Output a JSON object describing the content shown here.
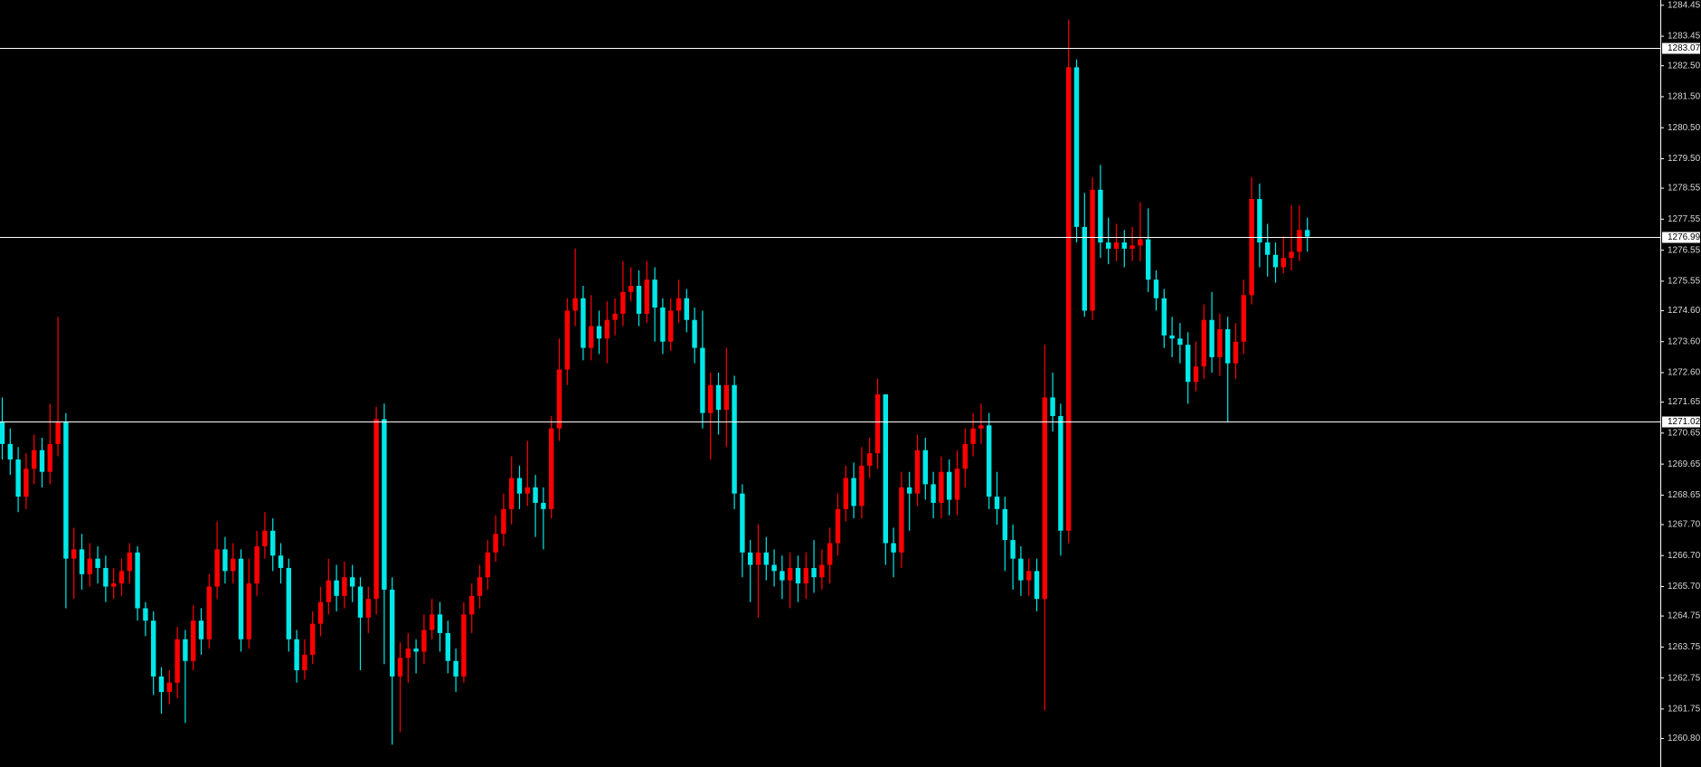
{
  "chart_data": {
    "type": "candlestick",
    "up_color": "#ff0000",
    "down_color": "#00e8e8",
    "level_color": "#ffffff",
    "ylim": [
      1259.88,
      1284.62
    ],
    "yticks": [
      1284.45,
      1283.45,
      {
        "value": 1282.5,
        "label": "1282.50"
      },
      {
        "value": 1281.5,
        "label": "1281.50"
      },
      {
        "value": 1280.5,
        "label": "1280.50"
      },
      {
        "value": 1279.5,
        "label": "1279.50"
      },
      1278.55,
      1277.55,
      1276.55,
      1275.55,
      {
        "value": 1274.6,
        "label": "1274.60"
      },
      {
        "value": 1273.6,
        "label": "1273.60"
      },
      {
        "value": 1272.6,
        "label": "1272.60"
      },
      1271.65,
      1270.65,
      1269.65,
      1268.65,
      {
        "value": 1267.7,
        "label": "1267.70"
      },
      {
        "value": 1266.7,
        "label": "1266.70"
      },
      {
        "value": 1265.7,
        "label": "1265.70"
      },
      1264.75,
      1263.75,
      1262.75,
      1261.75,
      {
        "value": 1260.8,
        "label": "1260.80"
      }
    ],
    "levels": [
      1283.07,
      1276.99,
      1271.02
    ],
    "open": [
      1271.0,
      1270.3,
      1269.8,
      1268.6,
      1269.5,
      1270.1,
      1269.4,
      1270.3,
      1271.0,
      1266.6,
      1266.9,
      1266.1,
      1266.6,
      1266.3,
      1265.7,
      1265.8,
      1266.2,
      1266.8,
      1265.0,
      1264.6,
      1262.8,
      1262.3,
      1262.6,
      1264.0,
      1263.3,
      1264.6,
      1264.0,
      1265.7,
      1266.9,
      1266.2,
      1266.6,
      1264.0,
      1265.8,
      1267.0,
      1267.5,
      1266.7,
      1266.3,
      1264.0,
      1263.0,
      1263.5,
      1264.5,
      1265.2,
      1265.9,
      1265.4,
      1266.0,
      1265.7,
      1264.7,
      1265.3,
      1271.1,
      1265.6,
      1262.8,
      1263.4,
      1263.7,
      1263.6,
      1264.3,
      1264.8,
      1264.2,
      1263.3,
      1262.8,
      1264.8,
      1265.4,
      1266.0,
      1266.8,
      1267.4,
      1268.2,
      1269.2,
      1268.7,
      1268.9,
      1268.4,
      1268.2,
      1270.8,
      1272.7,
      1274.6,
      1275.0,
      1273.4,
      1274.1,
      1273.7,
      1274.3,
      1274.5,
      1275.2,
      1275.4,
      1274.5,
      1275.6,
      1274.7,
      1273.6,
      1274.6,
      1275.0,
      1274.3,
      1273.4,
      1271.3,
      1272.2,
      1271.4,
      1272.2,
      1268.7,
      1266.8,
      1266.4,
      1266.8,
      1266.4,
      1266.2,
      1265.9,
      1266.3,
      1265.8,
      1266.3,
      1266.0,
      1266.4,
      1267.1,
      1268.2,
      1269.2,
      1268.3,
      1269.6,
      1270.0,
      1271.9,
      1267.1,
      1266.8,
      1268.9,
      1268.7,
      1270.1,
      1269.0,
      1268.4,
      1269.4,
      1268.5,
      1269.5,
      1270.3,
      1270.8,
      1270.9,
      1268.6,
      1268.2,
      1267.2,
      1266.6,
      1265.9,
      1266.2,
      1265.3,
      1271.8,
      1271.2,
      1267.5,
      1282.45,
      1277.3,
      1274.6,
      1278.5,
      1276.8,
      1276.6,
      1276.8,
      1276.6,
      1276.7,
      1276.9,
      1275.6,
      1275.0,
      1273.8,
      1273.7,
      1273.5,
      1272.3,
      1272.8,
      1274.3,
      1273.1,
      1274.0,
      1272.9,
      1273.6,
      1275.1,
      1278.2,
      1276.8,
      1276.4,
      1276.0,
      1276.3,
      1276.5,
      1277.2
    ],
    "high": [
      1271.8,
      1270.8,
      1270.2,
      1270.0,
      1270.6,
      1270.5,
      1271.6,
      1274.4,
      1271.3,
      1267.6,
      1267.4,
      1267.1,
      1267.0,
      1266.7,
      1266.3,
      1266.6,
      1267.1,
      1267.0,
      1265.2,
      1264.9,
      1263.1,
      1263.0,
      1264.4,
      1264.3,
      1265.1,
      1265.0,
      1266.1,
      1267.8,
      1267.3,
      1267.1,
      1266.9,
      1266.6,
      1267.5,
      1268.1,
      1267.9,
      1267.1,
      1266.6,
      1264.3,
      1264.0,
      1264.9,
      1265.7,
      1266.6,
      1266.4,
      1266.5,
      1266.4,
      1266.0,
      1265.7,
      1271.5,
      1271.6,
      1266.0,
      1263.9,
      1264.2,
      1264.0,
      1264.8,
      1265.3,
      1265.2,
      1264.6,
      1263.7,
      1265.2,
      1265.8,
      1266.4,
      1267.2,
      1268.0,
      1268.7,
      1269.9,
      1269.6,
      1270.4,
      1269.3,
      1268.9,
      1271.2,
      1273.7,
      1275.0,
      1276.6,
      1275.4,
      1275.1,
      1274.6,
      1274.9,
      1275.0,
      1276.2,
      1276.0,
      1275.9,
      1276.2,
      1276.0,
      1275.0,
      1275.0,
      1275.6,
      1275.3,
      1274.7,
      1274.6,
      1272.6,
      1272.6,
      1273.4,
      1272.5,
      1269.0,
      1267.2,
      1267.7,
      1267.3,
      1266.9,
      1266.7,
      1266.8,
      1266.7,
      1266.8,
      1267.2,
      1266.9,
      1267.6,
      1268.7,
      1269.6,
      1269.7,
      1270.2,
      1270.5,
      1272.4,
      1271.9,
      1267.6,
      1269.4,
      1269.4,
      1270.6,
      1270.5,
      1269.4,
      1269.9,
      1269.8,
      1270.1,
      1270.8,
      1271.3,
      1271.6,
      1271.3,
      1269.4,
      1268.6,
      1267.7,
      1267.0,
      1266.6,
      1266.6,
      1273.5,
      1272.6,
      1271.6,
      1283.99,
      1282.7,
      1278.4,
      1278.9,
      1279.3,
      1277.6,
      1277.4,
      1277.2,
      1277.3,
      1278.1,
      1277.9,
      1275.9,
      1275.3,
      1274.4,
      1274.2,
      1273.9,
      1273.6,
      1274.8,
      1275.2,
      1274.5,
      1274.4,
      1274.2,
      1275.6,
      1278.9,
      1278.7,
      1277.4,
      1276.8,
      1277.0,
      1278.0,
      1278.0,
      1277.6
    ],
    "low": [
      1269.8,
      1269.3,
      1268.1,
      1268.2,
      1269.0,
      1268.9,
      1269.0,
      1269.9,
      1265.0,
      1265.3,
      1265.6,
      1265.7,
      1265.8,
      1265.2,
      1265.3,
      1265.4,
      1265.8,
      1264.6,
      1264.1,
      1262.2,
      1261.6,
      1261.9,
      1262.1,
      1261.3,
      1263.0,
      1263.5,
      1263.7,
      1265.3,
      1265.8,
      1265.8,
      1263.6,
      1263.7,
      1265.4,
      1266.6,
      1266.2,
      1265.8,
      1263.6,
      1262.6,
      1262.7,
      1263.2,
      1264.1,
      1264.8,
      1264.9,
      1265.0,
      1265.2,
      1263.0,
      1264.2,
      1264.8,
      1263.2,
      1260.6,
      1261.0,
      1262.6,
      1262.9,
      1263.2,
      1264.0,
      1263.6,
      1262.9,
      1262.3,
      1262.6,
      1264.2,
      1265.0,
      1265.6,
      1266.5,
      1267.0,
      1267.7,
      1268.2,
      1268.3,
      1267.3,
      1266.9,
      1267.9,
      1270.4,
      1272.2,
      1274.1,
      1273.0,
      1273.0,
      1273.2,
      1272.9,
      1273.8,
      1274.1,
      1274.9,
      1274.1,
      1274.2,
      1273.6,
      1273.2,
      1273.3,
      1274.2,
      1273.9,
      1272.9,
      1270.8,
      1269.8,
      1270.6,
      1270.2,
      1268.2,
      1266.0,
      1265.2,
      1264.7,
      1265.9,
      1265.7,
      1265.3,
      1265.0,
      1265.2,
      1265.3,
      1265.5,
      1265.6,
      1265.8,
      1266.7,
      1267.8,
      1267.9,
      1267.9,
      1269.2,
      1269.5,
      1266.4,
      1266.0,
      1266.3,
      1267.5,
      1268.3,
      1268.5,
      1267.9,
      1267.9,
      1268.0,
      1268.0,
      1268.9,
      1269.9,
      1270.3,
      1268.2,
      1267.7,
      1266.2,
      1265.6,
      1265.4,
      1265.4,
      1264.9,
      1261.7,
      1270.7,
      1266.7,
      1267.1,
      1276.8,
      1274.4,
      1274.3,
      1276.3,
      1276.1,
      1276.2,
      1276.0,
      1276.2,
      1276.2,
      1275.2,
      1274.6,
      1273.4,
      1273.1,
      1272.9,
      1271.6,
      1272.0,
      1272.4,
      1272.6,
      1272.5,
      1271.0,
      1272.4,
      1273.2,
      1274.8,
      1276.0,
      1275.7,
      1275.5,
      1275.8,
      1275.9,
      1276.2,
      1276.5
    ],
    "close": [
      1270.3,
      1269.8,
      1268.6,
      1269.5,
      1270.1,
      1269.4,
      1270.3,
      1271.0,
      1266.6,
      1266.9,
      1266.1,
      1266.6,
      1266.3,
      1265.7,
      1265.8,
      1266.2,
      1266.8,
      1265.0,
      1264.6,
      1262.8,
      1262.3,
      1262.6,
      1264.0,
      1263.3,
      1264.6,
      1264.0,
      1265.7,
      1266.9,
      1266.2,
      1266.6,
      1264.0,
      1265.8,
      1267.0,
      1267.5,
      1266.7,
      1266.3,
      1264.0,
      1263.0,
      1263.5,
      1264.5,
      1265.2,
      1265.9,
      1265.4,
      1266.0,
      1265.7,
      1264.7,
      1265.3,
      1271.1,
      1265.6,
      1262.8,
      1263.4,
      1263.7,
      1263.6,
      1264.3,
      1264.8,
      1264.2,
      1263.3,
      1262.8,
      1264.8,
      1265.4,
      1266.0,
      1266.8,
      1267.4,
      1268.2,
      1269.2,
      1268.7,
      1268.9,
      1268.4,
      1268.2,
      1270.8,
      1272.7,
      1274.6,
      1275.0,
      1273.4,
      1274.1,
      1273.7,
      1274.3,
      1274.5,
      1275.2,
      1275.4,
      1274.5,
      1275.6,
      1274.7,
      1273.6,
      1274.6,
      1275.0,
      1274.3,
      1273.4,
      1271.3,
      1272.2,
      1271.4,
      1272.2,
      1268.7,
      1266.8,
      1266.4,
      1266.8,
      1266.4,
      1266.2,
      1265.9,
      1266.3,
      1265.8,
      1266.3,
      1266.0,
      1266.4,
      1267.1,
      1268.2,
      1269.2,
      1268.3,
      1269.6,
      1270.0,
      1271.9,
      1267.1,
      1266.8,
      1268.9,
      1268.7,
      1270.1,
      1269.0,
      1268.4,
      1269.4,
      1268.5,
      1269.5,
      1270.3,
      1270.8,
      1270.9,
      1268.6,
      1268.2,
      1267.2,
      1266.6,
      1265.9,
      1266.2,
      1265.3,
      1271.8,
      1271.2,
      1267.5,
      1282.45,
      1277.3,
      1274.6,
      1278.5,
      1276.8,
      1276.6,
      1276.8,
      1276.6,
      1276.7,
      1276.9,
      1275.6,
      1275.0,
      1273.8,
      1273.7,
      1273.5,
      1272.3,
      1272.8,
      1274.3,
      1273.1,
      1274.0,
      1272.9,
      1273.6,
      1275.1,
      1278.2,
      1276.8,
      1276.4,
      1276.0,
      1276.3,
      1276.5,
      1277.2,
      1276.99
    ]
  }
}
